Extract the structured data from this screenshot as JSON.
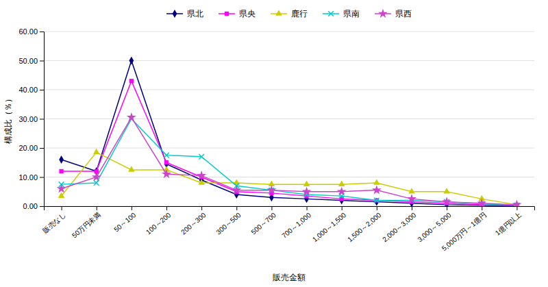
{
  "chart_data": {
    "type": "line",
    "x_label": "販売金額",
    "y_label": "構成比（％）",
    "categories": [
      "販売なし",
      "50万円未満",
      "50～100",
      "100～200",
      "200～300",
      "300～500",
      "500～700",
      "700～1,000",
      "1,000～1,500",
      "1,500～2,000",
      "2,000～3,000",
      "3,000～5,000",
      "5,000万円～1億円",
      "1億円以上"
    ],
    "series": [
      {
        "name": "県北",
        "color": "#000080",
        "marker": "diamond",
        "values": [
          16.0,
          12.0,
          50.0,
          14.5,
          9.0,
          4.0,
          3.0,
          2.5,
          2.0,
          1.5,
          1.0,
          0.5,
          0.3,
          0.2
        ]
      },
      {
        "name": "県央",
        "color": "#ff00ff",
        "marker": "square",
        "values": [
          12.0,
          12.0,
          43.0,
          15.0,
          10.0,
          5.0,
          4.5,
          3.5,
          2.5,
          2.0,
          1.5,
          1.0,
          0.5,
          0.3
        ]
      },
      {
        "name": "鹿行",
        "color": "#cccc00",
        "marker": "triangle",
        "values": [
          3.5,
          18.5,
          12.5,
          12.5,
          8.0,
          8.0,
          7.5,
          7.5,
          7.5,
          8.0,
          5.0,
          5.0,
          2.5,
          0.5
        ]
      },
      {
        "name": "県南",
        "color": "#00cccc",
        "marker": "x",
        "values": [
          7.5,
          8.0,
          30.0,
          17.5,
          17.0,
          7.0,
          5.5,
          4.0,
          3.5,
          2.0,
          2.0,
          1.5,
          0.8,
          0.3
        ]
      },
      {
        "name": "県西",
        "color": "#cc44cc",
        "marker": "star",
        "values": [
          6.0,
          10.0,
          30.5,
          11.0,
          10.5,
          5.5,
          5.5,
          5.0,
          5.0,
          5.5,
          2.5,
          1.5,
          1.0,
          0.5
        ]
      }
    ],
    "ylim": [
      0,
      60
    ],
    "yticks": [
      {
        "value": 0,
        "label": "0.00"
      },
      {
        "value": 10,
        "label": "10.00"
      },
      {
        "value": 20,
        "label": "20.00"
      },
      {
        "value": 30,
        "label": "30.00"
      },
      {
        "value": 40,
        "label": "40.00"
      },
      {
        "value": 50,
        "label": "50.00"
      },
      {
        "value": 60,
        "label": "60.00"
      }
    ],
    "grid": true,
    "legend": "top"
  }
}
